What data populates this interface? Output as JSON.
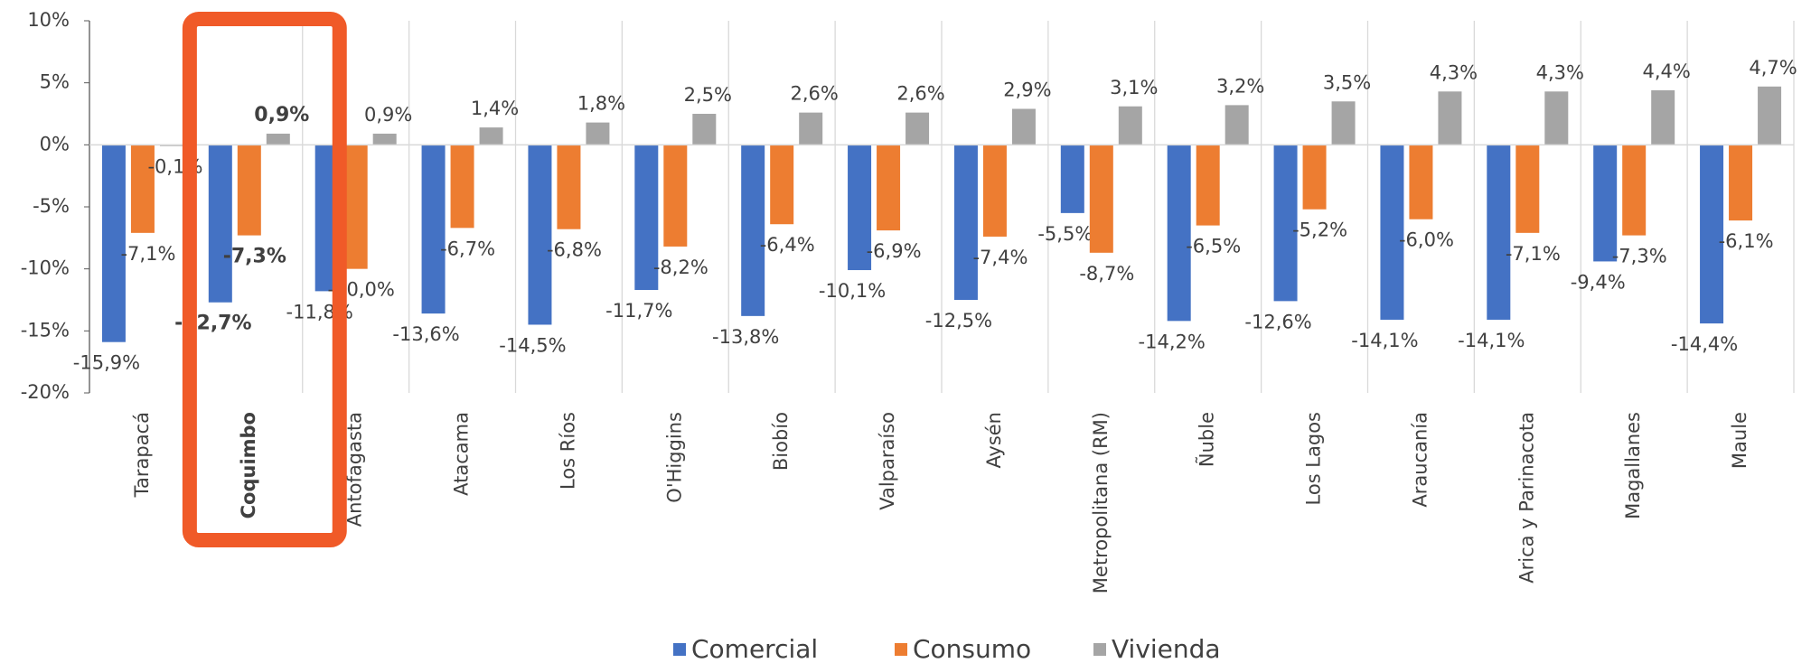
{
  "chart_data": {
    "type": "bar",
    "categories": [
      "Tarapacá",
      "Coquimbo",
      "Antofagasta",
      "Atacama",
      "Los Ríos",
      "O'Higgins",
      "Biobío",
      "Valparaíso",
      "Aysén",
      "Metropolitana (RM)",
      "Ñuble",
      "Los Lagos",
      "Araucanía",
      "Arica y Parinacota",
      "Magallanes",
      "Maule"
    ],
    "series": [
      {
        "name": "Comercial",
        "color": "#4472c4",
        "values": [
          -15.9,
          -12.7,
          -11.8,
          -13.6,
          -14.5,
          -11.7,
          -13.8,
          -10.1,
          -12.5,
          -5.5,
          -14.2,
          -12.6,
          -14.1,
          -14.1,
          -9.4,
          -14.4
        ],
        "value_labels": [
          "-15,9%",
          "-12,7%",
          "-11,8%",
          "-13,6%",
          "-14,5%",
          "-11,7%",
          "-13,8%",
          "-10,1%",
          "-12,5%",
          "-5,5%",
          "-14,2%",
          "-12,6%",
          "-14,1%",
          "-14,1%",
          "-9,4%",
          "-14,4%"
        ]
      },
      {
        "name": "Consumo",
        "color": "#ed7d31",
        "values": [
          -7.1,
          -7.3,
          -10.0,
          -6.7,
          -6.8,
          -8.2,
          -6.4,
          -6.9,
          -7.4,
          -8.7,
          -6.5,
          -5.2,
          -6.0,
          -7.1,
          -7.3,
          -6.1
        ],
        "value_labels": [
          "-7,1%",
          "-7,3%",
          "-10,0%",
          "-6,7%",
          "-6,8%",
          "-8,2%",
          "-6,4%",
          "-6,9%",
          "-7,4%",
          "-8,7%",
          "-6,5%",
          "-5,2%",
          "-6,0%",
          "-7,1%",
          "-7,3%",
          "-6,1%"
        ]
      },
      {
        "name": "Vivienda",
        "color": "#a5a5a5",
        "values": [
          -0.1,
          0.9,
          0.9,
          1.4,
          1.8,
          2.5,
          2.6,
          2.6,
          2.9,
          3.1,
          3.2,
          3.5,
          4.3,
          4.3,
          4.4,
          4.7
        ],
        "value_labels": [
          "-0,1%",
          "0,9%",
          "0,9%",
          "1,4%",
          "1,8%",
          "2,5%",
          "2,6%",
          "2,6%",
          "2,9%",
          "3,1%",
          "3,2%",
          "3,5%",
          "4,3%",
          "4,3%",
          "4,4%",
          "4,7%"
        ]
      }
    ],
    "ylim": [
      -20,
      10
    ],
    "yticks": [
      {
        "value": -20,
        "label": "-20%"
      },
      {
        "value": -15,
        "label": "-15%"
      },
      {
        "value": -10,
        "label": "-10%"
      },
      {
        "value": -5,
        "label": "-5%"
      },
      {
        "value": 0,
        "label": "0%"
      },
      {
        "value": 5,
        "label": "5%"
      },
      {
        "value": 10,
        "label": "10%"
      }
    ],
    "highlight": 1,
    "legend": "bottom"
  }
}
